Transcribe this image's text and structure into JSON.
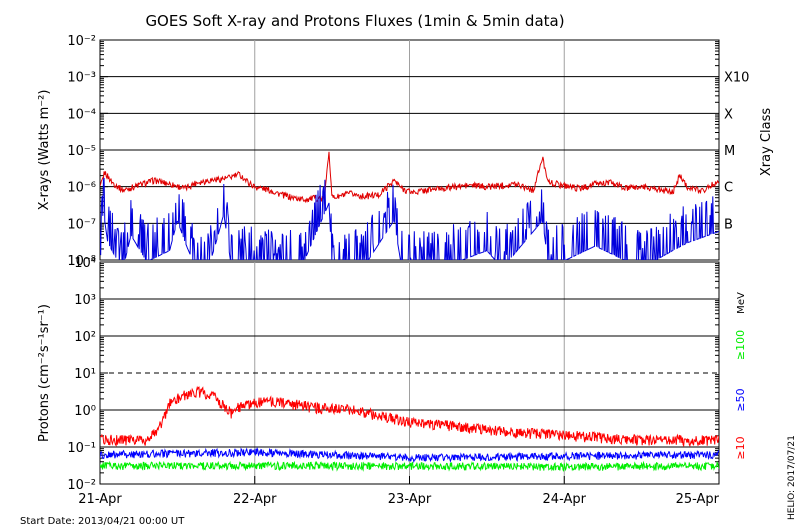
{
  "title": "GOES Soft X-ray and Protons Fluxes   (1min & 5min data)",
  "footer": {
    "start_date": "Start Date: 2013/04/21 00:00 UT",
    "credit": "HELIO: 2017/07/21"
  },
  "colors": {
    "xray_long": "#e00000",
    "xray_short": "#0000dd",
    "proton_10": "#ff0000",
    "proton_50": "#0000ff",
    "proton_100": "#00ee00",
    "grid": "#000000",
    "day_line": "#a0a0a0"
  },
  "chart_data": [
    {
      "type": "line",
      "panel": "xray",
      "ylabel": "X-rays (Watts m⁻²)",
      "yscale": "log",
      "ylim": [
        1e-08,
        0.01
      ],
      "ytick_labels": [
        "10⁻⁸",
        "10⁻⁷",
        "10⁻⁶",
        "10⁻⁵",
        "10⁻⁴",
        "10⁻³",
        "10⁻²"
      ],
      "right_axis_label": "Xray Class",
      "class_labels": [
        {
          "label": "B",
          "flux": 1e-07
        },
        {
          "label": "C",
          "flux": 1e-06
        },
        {
          "label": "M",
          "flux": 1e-05
        },
        {
          "label": "X",
          "flux": 0.0001
        },
        {
          "label": "X10",
          "flux": 0.001
        }
      ],
      "x_unit": "days since 2013-04-21 00:00 UT",
      "series": [
        {
          "name": "long",
          "points": [
            [
              0.0,
              9e-07
            ],
            [
              0.03,
              2.5e-06
            ],
            [
              0.08,
              1.3e-06
            ],
            [
              0.15,
              8e-07
            ],
            [
              0.25,
              1.1e-06
            ],
            [
              0.35,
              1.5e-06
            ],
            [
              0.45,
              1.2e-06
            ],
            [
              0.55,
              9e-07
            ],
            [
              0.62,
              1.3e-06
            ],
            [
              0.7,
              1.5e-06
            ],
            [
              0.76,
              1.6e-06
            ],
            [
              0.82,
              1.7e-06
            ],
            [
              0.9,
              2.2e-06
            ],
            [
              0.96,
              1.3e-06
            ],
            [
              1.0,
              1e-06
            ],
            [
              1.05,
              9e-07
            ],
            [
              1.1,
              8e-07
            ],
            [
              1.18,
              6e-07
            ],
            [
              1.25,
              5e-07
            ],
            [
              1.32,
              4.5e-07
            ],
            [
              1.4,
              5e-07
            ],
            [
              1.45,
              4.5e-07
            ],
            [
              1.48,
              1e-05
            ],
            [
              1.5,
              5e-07
            ],
            [
              1.55,
              5.5e-07
            ],
            [
              1.62,
              6.5e-07
            ],
            [
              1.7,
              5.5e-07
            ],
            [
              1.8,
              6e-07
            ],
            [
              1.9,
              1.5e-06
            ],
            [
              1.95,
              9e-07
            ],
            [
              2.02,
              7e-07
            ],
            [
              2.1,
              8e-07
            ],
            [
              2.2,
              9e-07
            ],
            [
              2.3,
              1e-06
            ],
            [
              2.4,
              1.1e-06
            ],
            [
              2.5,
              1e-06
            ],
            [
              2.6,
              1.1e-06
            ],
            [
              2.7,
              1.2e-06
            ],
            [
              2.8,
              8e-07
            ],
            [
              2.86,
              6e-06
            ],
            [
              2.9,
              1.3e-06
            ],
            [
              3.0,
              1.1e-06
            ],
            [
              3.1,
              9e-07
            ],
            [
              3.2,
              1.2e-06
            ],
            [
              3.3,
              1.3e-06
            ],
            [
              3.4,
              9e-07
            ],
            [
              3.5,
              1e-06
            ],
            [
              3.6,
              9e-07
            ],
            [
              3.7,
              7e-07
            ],
            [
              3.75,
              2.2e-06
            ],
            [
              3.8,
              9e-07
            ],
            [
              3.9,
              8e-07
            ],
            [
              4.0,
              1.5e-06
            ]
          ]
        },
        {
          "name": "short",
          "points": [
            [
              0.0,
              1e-08
            ],
            [
              0.02,
              4e-07
            ],
            [
              0.05,
              5e-08
            ],
            [
              0.1,
              2e-08
            ],
            [
              0.15,
              1e-08
            ],
            [
              0.2,
              8e-08
            ],
            [
              0.3,
              1.5e-08
            ],
            [
              0.45,
              3e-08
            ],
            [
              0.5,
              2e-07
            ],
            [
              0.55,
              5e-08
            ],
            [
              0.62,
              1e-08
            ],
            [
              0.7,
              1e-08
            ],
            [
              0.75,
              5e-08
            ],
            [
              0.8,
              3e-07
            ],
            [
              0.85,
              1e-08
            ],
            [
              0.95,
              1.5e-08
            ],
            [
              1.1,
              1e-08
            ],
            [
              1.3,
              1e-08
            ],
            [
              1.48,
              6e-07
            ],
            [
              1.5,
              1e-08
            ],
            [
              1.7,
              1e-08
            ],
            [
              1.9,
              2e-07
            ],
            [
              1.95,
              1e-08
            ],
            [
              2.2,
              1e-08
            ],
            [
              2.5,
              3e-08
            ],
            [
              2.6,
              1e-08
            ],
            [
              2.86,
              2e-07
            ],
            [
              2.9,
              1e-08
            ],
            [
              3.2,
              4e-08
            ],
            [
              3.5,
              1e-08
            ],
            [
              3.7,
              3e-08
            ],
            [
              3.8,
              5e-08
            ],
            [
              4.0,
              1e-07
            ]
          ]
        }
      ]
    },
    {
      "type": "line",
      "panel": "protons",
      "ylabel": "Protons (cm⁻²s⁻¹sr⁻¹)",
      "yscale": "log",
      "ylim": [
        0.01,
        10000
      ],
      "ytick_labels": [
        "10⁻²",
        "10⁻¹",
        "10⁰",
        "10¹",
        "10²",
        "10³",
        "10⁴"
      ],
      "right_axis_label": "MeV",
      "x_unit": "days since 2013-04-21 00:00 UT",
      "xtick_labels": [
        "21-Apr",
        "22-Apr",
        "23-Apr",
        "24-Apr",
        "25-Apr"
      ],
      "series": [
        {
          "name": "≥10",
          "points": [
            [
              0.0,
              0.15
            ],
            [
              0.3,
              0.15
            ],
            [
              0.4,
              0.4
            ],
            [
              0.45,
              1.5
            ],
            [
              0.55,
              2.5
            ],
            [
              0.65,
              3.0
            ],
            [
              0.75,
              2.0
            ],
            [
              0.8,
              1.2
            ],
            [
              0.85,
              0.8
            ],
            [
              0.9,
              1.2
            ],
            [
              1.0,
              1.5
            ],
            [
              1.1,
              1.6
            ],
            [
              1.2,
              1.5
            ],
            [
              1.4,
              1.1
            ],
            [
              1.6,
              1.0
            ],
            [
              1.8,
              0.7
            ],
            [
              2.0,
              0.45
            ],
            [
              2.3,
              0.35
            ],
            [
              2.6,
              0.25
            ],
            [
              3.0,
              0.2
            ],
            [
              3.5,
              0.15
            ],
            [
              4.0,
              0.15
            ]
          ]
        },
        {
          "name": "≥50",
          "points": [
            [
              0.0,
              0.06
            ],
            [
              1.0,
              0.07
            ],
            [
              2.0,
              0.05
            ],
            [
              3.0,
              0.055
            ],
            [
              4.0,
              0.06
            ]
          ]
        },
        {
          "name": "≥100",
          "points": [
            [
              0.0,
              0.03
            ],
            [
              1.0,
              0.03
            ],
            [
              2.0,
              0.03
            ],
            [
              3.0,
              0.028
            ],
            [
              4.0,
              0.03
            ]
          ]
        }
      ]
    }
  ]
}
